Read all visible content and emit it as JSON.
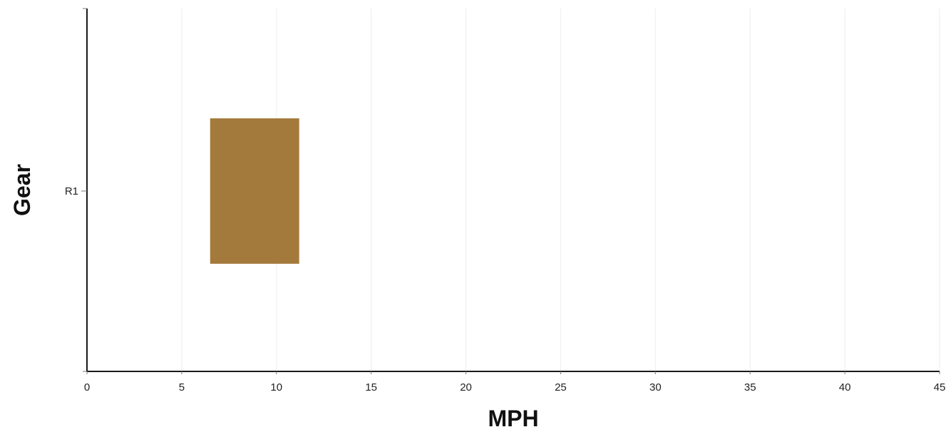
{
  "chart_data": {
    "type": "bar",
    "orientation": "horizontal-range",
    "xlabel": "MPH",
    "ylabel": "Gear",
    "xlim": [
      0,
      45
    ],
    "x_ticks": [
      "0",
      "5",
      "10",
      "15",
      "20",
      "25",
      "30",
      "35",
      "40",
      "45"
    ],
    "categories": [
      "R1"
    ],
    "ranges": [
      {
        "category": "R1",
        "start": 6.5,
        "end": 11.2
      }
    ],
    "grid": true,
    "bar_color": "#a47a3c"
  }
}
